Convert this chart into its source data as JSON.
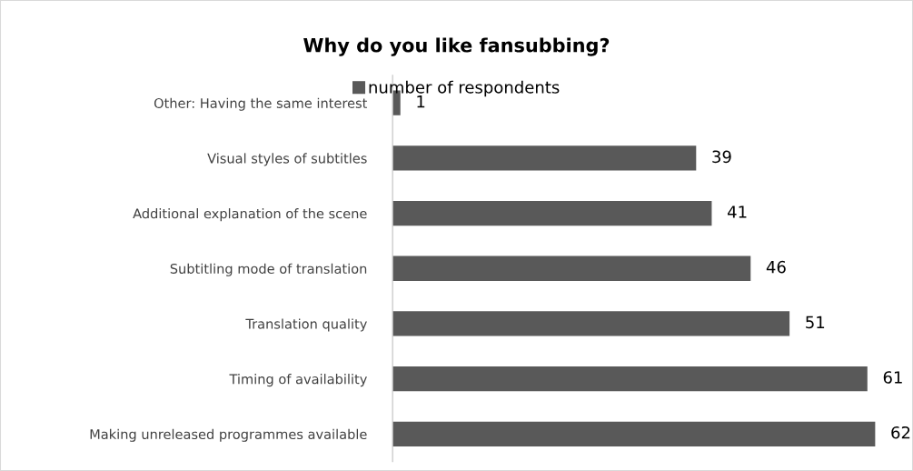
{
  "chart_data": {
    "type": "bar",
    "orientation": "horizontal",
    "title": "Why do you like fansubbing?",
    "categories": [
      "Other: Having the same interest",
      "Visual styles of subtitles",
      "Additional explanation of the scene",
      "Subtitling mode of translation",
      "Translation quality",
      "Timing of availability",
      "Making unreleased programmes available"
    ],
    "series": [
      {
        "name": "number of respondents",
        "color": "#595959",
        "values": [
          1,
          39,
          41,
          46,
          51,
          61,
          62
        ]
      }
    ],
    "data_labels": true,
    "legend": "top",
    "grid": false,
    "tick_labels": "y"
  }
}
